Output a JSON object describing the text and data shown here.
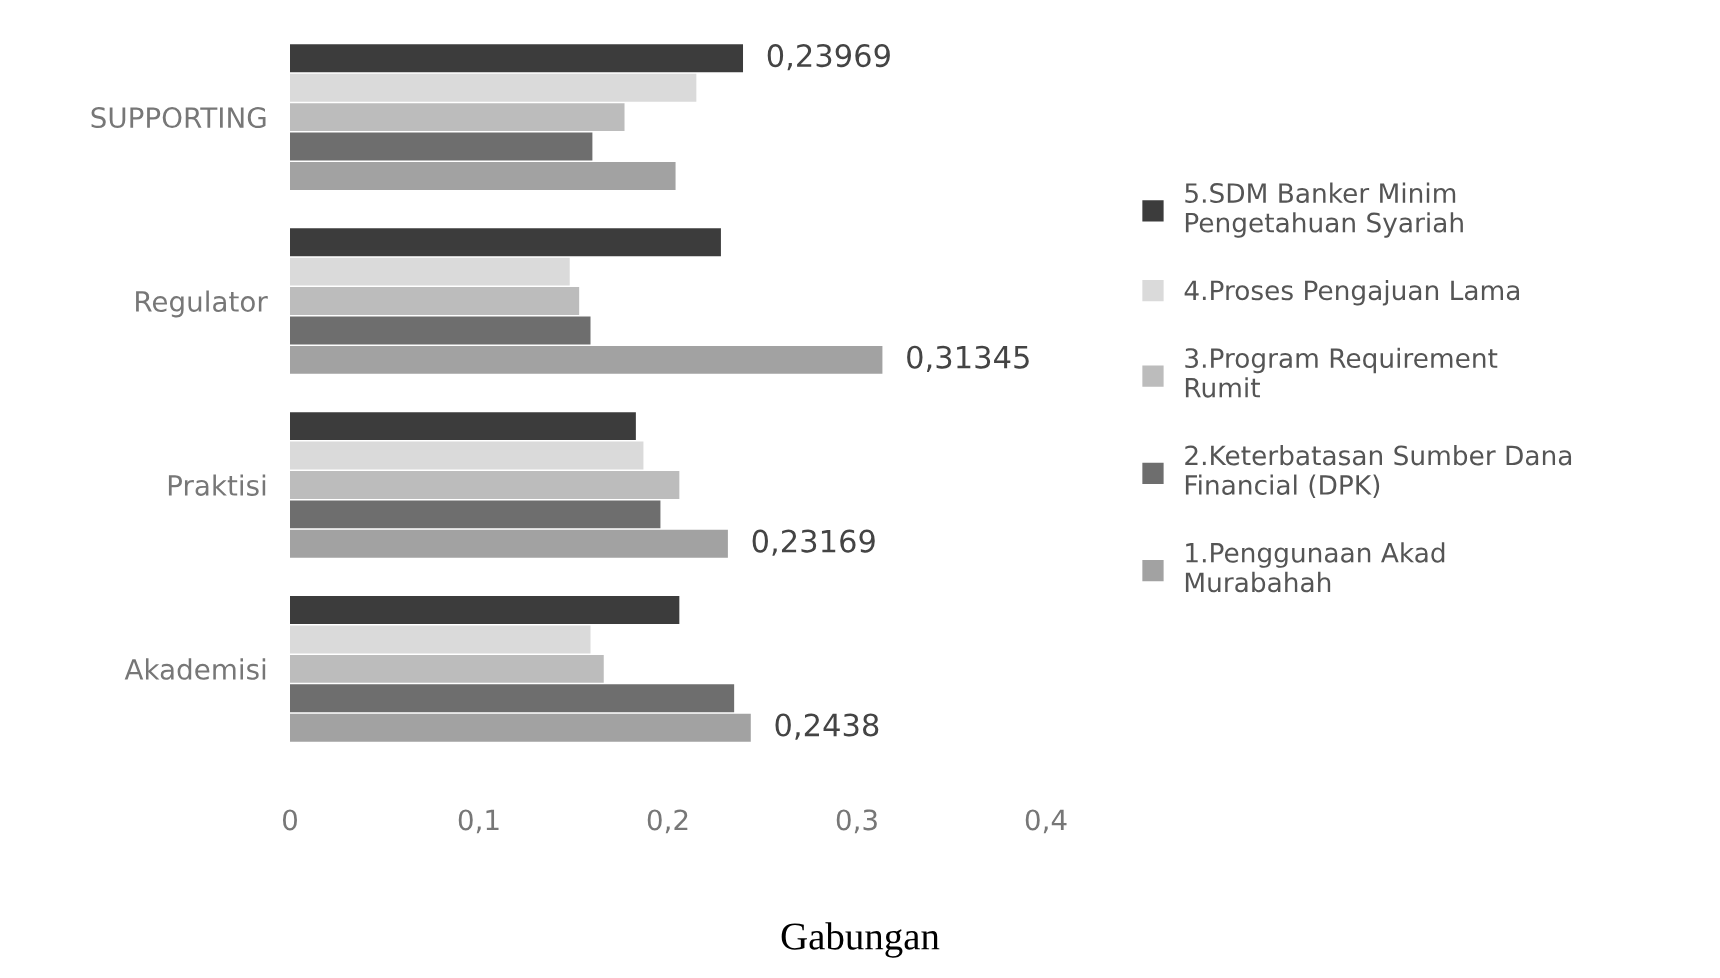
{
  "chart_data": {
    "type": "bar",
    "orientation": "horizontal",
    "title": "Gabungan",
    "categories": [
      "SUPPORTING",
      "Regulator",
      "Praktisi",
      "Akademisi"
    ],
    "series": [
      {
        "name": "1.Penggunaan Akad Murabahah",
        "color": "#a2a2a2",
        "values": [
          0.204,
          0.31345,
          0.23169,
          0.2438
        ],
        "value_labels": [
          null,
          "0,31345",
          "0,23169",
          "0,2438"
        ]
      },
      {
        "name": "2.Keterbatasan Sumber Dana Financial (DPK)",
        "color": "#6e6e6e",
        "values": [
          0.16,
          0.159,
          0.196,
          0.235
        ]
      },
      {
        "name": "3.Program Requirement Rumit",
        "color": "#bcbcbc",
        "values": [
          0.177,
          0.153,
          0.206,
          0.166
        ]
      },
      {
        "name": "4.Proses Pengajuan Lama",
        "color": "#dadada",
        "values": [
          0.215,
          0.148,
          0.187,
          0.159
        ]
      },
      {
        "name": "5.SDM Banker Minim Pengetahuan Syariah",
        "color": "#3c3c3c",
        "values": [
          0.23969,
          0.228,
          0.183,
          0.206
        ],
        "value_labels": [
          "0,23969",
          null,
          null,
          null
        ]
      }
    ],
    "xlim": [
      0,
      0.4
    ],
    "xticks": [
      0,
      {
        "value": 0.1,
        "label": "0,1"
      },
      {
        "value": 0.2,
        "label": "0,2"
      },
      {
        "value": 0.3,
        "label": "0,3"
      },
      {
        "value": 0.4,
        "label": "0,4"
      }
    ],
    "grid": false,
    "legend": "right"
  }
}
